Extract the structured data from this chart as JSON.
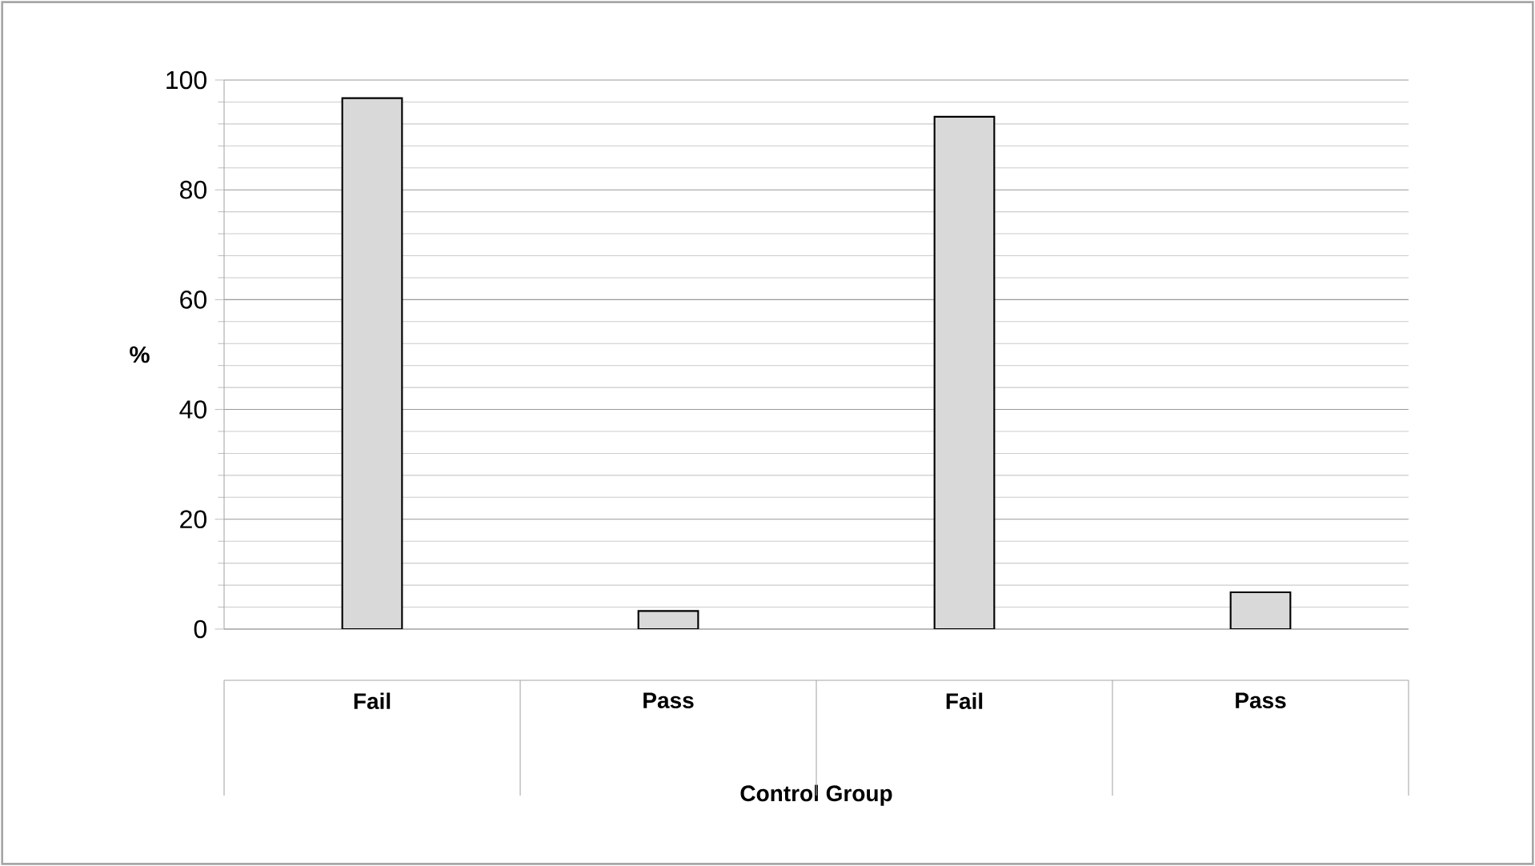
{
  "chart_data": {
    "type": "bar",
    "xlabel": "Control Group",
    "ylabel": "%",
    "categories": [
      "Fail",
      "Pass",
      "Fail",
      "Pass"
    ],
    "values": [
      96.7,
      3.3,
      93.3,
      6.7
    ],
    "color": "#d9d9d9",
    "ylim": [
      0,
      100
    ],
    "yticks": [
      0,
      20,
      40,
      60,
      80,
      100
    ],
    "grid": "y"
  }
}
